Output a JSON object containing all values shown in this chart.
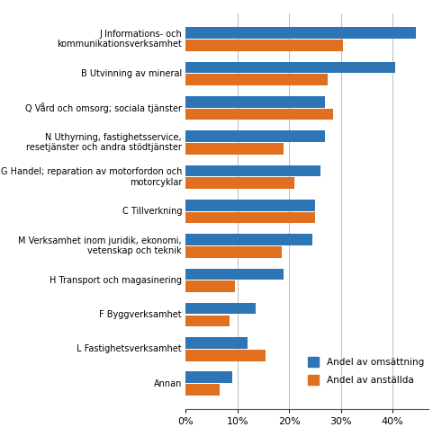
{
  "categories": [
    "J Informations- och\nkommunikationsverksamhet",
    "B Utvinning av mineral",
    "Q Vård och omsorg; sociala tjänster",
    "N Uthyrning, fastighetsservice,\nresetjänster och andra stödtjänster",
    "G Handel; reparation av motorfordon och\nmotorcyklar",
    "C Tillverkning",
    "M Verksamhet inom juridik, ekonomi,\nvetenskap och teknik",
    "H Transport och magasinering",
    "F Byggverksamhet",
    "L Fastighetsverksamhet",
    "Annan"
  ],
  "omsattning": [
    44.5,
    40.5,
    27.0,
    27.0,
    26.0,
    25.0,
    24.5,
    19.0,
    13.5,
    12.0,
    9.0
  ],
  "anstallda": [
    30.5,
    27.5,
    28.5,
    19.0,
    21.0,
    25.0,
    18.5,
    9.5,
    8.5,
    15.5,
    6.5
  ],
  "color_omsattning": "#2E75B6",
  "color_anstallda": "#E07020",
  "legend_omsattning": "Andel av omsättning",
  "legend_anstallda": "Andel av anställda",
  "xlim": [
    0,
    47
  ],
  "xticks": [
    0,
    10,
    20,
    30,
    40
  ],
  "xticklabels": [
    "0%",
    "10%",
    "20%",
    "30%",
    "40%"
  ],
  "background_color": "#ffffff",
  "grid_color": "#bbbbbb"
}
